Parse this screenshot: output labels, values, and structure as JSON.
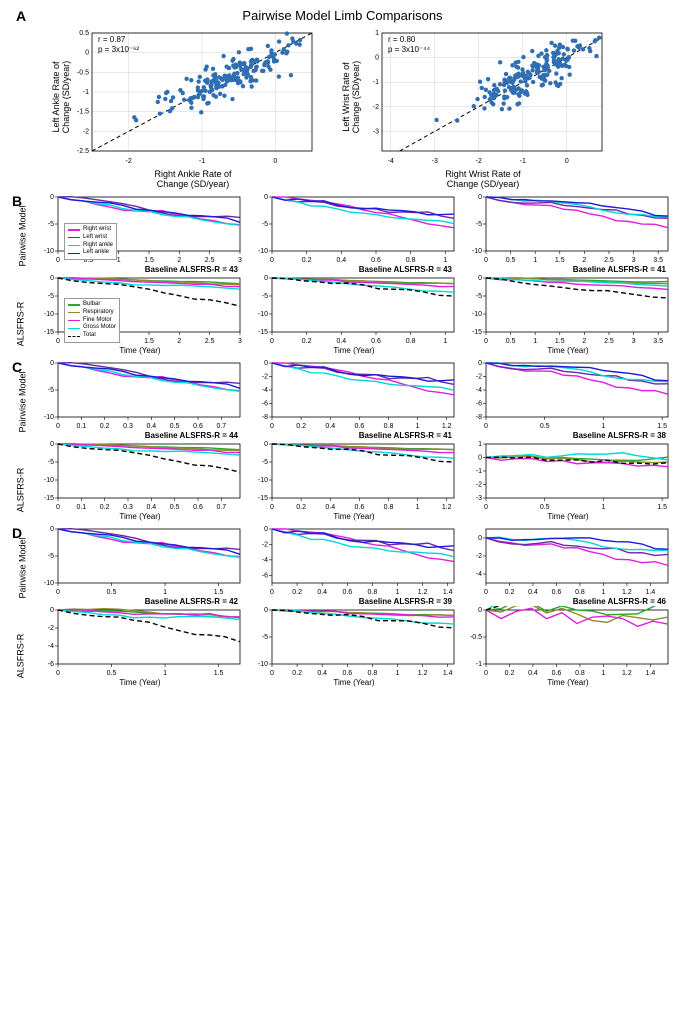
{
  "title": "Pairwise Model Limb Comparisons",
  "colors": {
    "scatter": "#2F6EB3",
    "grid": "#d0d0d0",
    "axis": "#000000",
    "right_wrist": "#e11ee1",
    "left_wrist": "#6A28A8",
    "right_ankle": "#00d8d8",
    "left_ankle": "#1b1bd8",
    "bulbar": "#2aa82a",
    "respiratory": "#8e8e28",
    "fine_motor": "#e11ee1",
    "gross_motor": "#00d8d8",
    "total": "#000000"
  },
  "panelA": {
    "label": "A",
    "left": {
      "r": "r = 0.87",
      "p": "p = 3x10⁻⁶²",
      "xlabel": "Right Ankle Rate of\nChange (SD/year)",
      "ylabel": "Left Ankle Rate of\nChange (SD/year)",
      "xlim": [
        -2.5,
        0.5
      ],
      "ylim": [
        -2.5,
        0.5
      ],
      "xticks": [
        -2,
        -1,
        0
      ],
      "yticks": [
        -2.5,
        -2,
        -1.5,
        -1,
        -0.5,
        0,
        0.5
      ]
    },
    "right": {
      "r": "r = 0.80",
      "p": "p = 3x10⁻⁴⁴",
      "xlabel": "Right Wrist Rate of\nChange (SD/year)",
      "ylabel": "Left Wrist Rate of\nChange (SD/year)",
      "xlim": [
        -4.2,
        0.8
      ],
      "ylim": [
        -3.8,
        1
      ],
      "xticks": [
        -4,
        -3,
        -2,
        -1,
        0
      ],
      "yticks": [
        -3,
        -2,
        -1,
        0,
        1
      ]
    }
  },
  "panelB": {
    "label": "B",
    "legend_pairwise": [
      "Right wrist",
      "Left wrist",
      "Right ankle",
      "Left ankle"
    ],
    "legend_alsfrs": [
      "Bulbar",
      "Respiratory",
      "Fine Motor",
      "Gross Motor",
      "Total"
    ],
    "cols": [
      {
        "baseline": "Baseline ALSFRS-R = 43",
        "xmax": 3,
        "xticks": [
          0,
          0.5,
          1,
          1.5,
          2,
          2.5,
          3
        ],
        "pm_ylim": [
          -10,
          0
        ],
        "pm_yticks": [
          -10,
          -5,
          0
        ],
        "als_ylim": [
          -15,
          0
        ],
        "als_yticks": [
          -15,
          -10,
          -5,
          0
        ]
      },
      {
        "baseline": "Baseline ALSFRS-R = 43",
        "xmax": 1.05,
        "xticks": [
          0,
          0.2,
          0.4,
          0.6,
          0.8,
          1
        ],
        "pm_ylim": [
          -10,
          0
        ],
        "pm_yticks": [
          -10,
          -5,
          0
        ],
        "als_ylim": [
          -15,
          0
        ],
        "als_yticks": [
          -15,
          -10,
          -5,
          0
        ]
      },
      {
        "baseline": "Baseline ALSFRS-R = 41",
        "xmax": 3.7,
        "xticks": [
          0,
          0.5,
          1,
          1.5,
          2,
          2.5,
          3,
          3.5
        ],
        "pm_ylim": [
          -10,
          0
        ],
        "pm_yticks": [
          -10,
          -5,
          0
        ],
        "als_ylim": [
          -15,
          0
        ],
        "als_yticks": [
          -15,
          -10,
          -5,
          0
        ]
      }
    ]
  },
  "panelC": {
    "label": "C",
    "cols": [
      {
        "baseline": "Baseline ALSFRS-R = 44",
        "xmax": 0.78,
        "xticks": [
          0,
          0.1,
          0.2,
          0.3,
          0.4,
          0.5,
          0.6,
          0.7
        ],
        "pm_ylim": [
          -10,
          0
        ],
        "pm_yticks": [
          -10,
          -5,
          0
        ],
        "als_ylim": [
          -15,
          0
        ],
        "als_yticks": [
          -15,
          -10,
          -5,
          0
        ]
      },
      {
        "baseline": "Baseline ALSFRS-R = 41",
        "xmax": 1.25,
        "xticks": [
          0,
          0.2,
          0.4,
          0.6,
          0.8,
          1,
          1.2
        ],
        "pm_ylim": [
          -8,
          0
        ],
        "pm_yticks": [
          -8,
          -6,
          -4,
          -2,
          0
        ],
        "als_ylim": [
          -15,
          0
        ],
        "als_yticks": [
          -15,
          -10,
          -5,
          0
        ]
      },
      {
        "baseline": "Baseline ALSFRS-R = 38",
        "xmax": 1.55,
        "xticks": [
          0,
          0.5,
          1,
          1.5
        ],
        "pm_ylim": [
          -8,
          0
        ],
        "pm_yticks": [
          -8,
          -6,
          -4,
          -2,
          0
        ],
        "als_ylim": [
          -3,
          1
        ],
        "als_yticks": [
          -3,
          -2,
          -1,
          0,
          1
        ]
      }
    ]
  },
  "panelD": {
    "label": "D",
    "cols": [
      {
        "baseline": "Baseline ALSFRS-R = 42",
        "xmax": 1.7,
        "xticks": [
          0,
          0.5,
          1,
          1.5
        ],
        "pm_ylim": [
          -10,
          0
        ],
        "pm_yticks": [
          -10,
          -5,
          0
        ],
        "als_ylim": [
          -6,
          0
        ],
        "als_yticks": [
          -6,
          -4,
          -2,
          0
        ]
      },
      {
        "baseline": "Baseline ALSFRS-R = 39",
        "xmax": 1.45,
        "xticks": [
          0,
          0.2,
          0.4,
          0.6,
          0.8,
          1,
          1.2,
          1.4
        ],
        "pm_ylim": [
          -7,
          0
        ],
        "pm_yticks": [
          -6,
          -4,
          -2,
          0
        ],
        "als_ylim": [
          -10,
          0
        ],
        "als_yticks": [
          -10,
          -5,
          0
        ]
      },
      {
        "baseline": "Baseline ALSFRS-R = 46",
        "xmax": 1.55,
        "xticks": [
          0,
          0.2,
          0.4,
          0.6,
          0.8,
          1,
          1.2,
          1.4
        ],
        "pm_ylim": [
          -5,
          1
        ],
        "pm_yticks": [
          -4,
          -2,
          0
        ],
        "als_ylim": [
          -1,
          0
        ],
        "als_yticks": [
          -1,
          -0.5,
          0
        ]
      }
    ]
  },
  "time_label": "Time (Year)",
  "row_labels": {
    "pm": "Pairwise Model",
    "als": "ALSFRS-R"
  }
}
